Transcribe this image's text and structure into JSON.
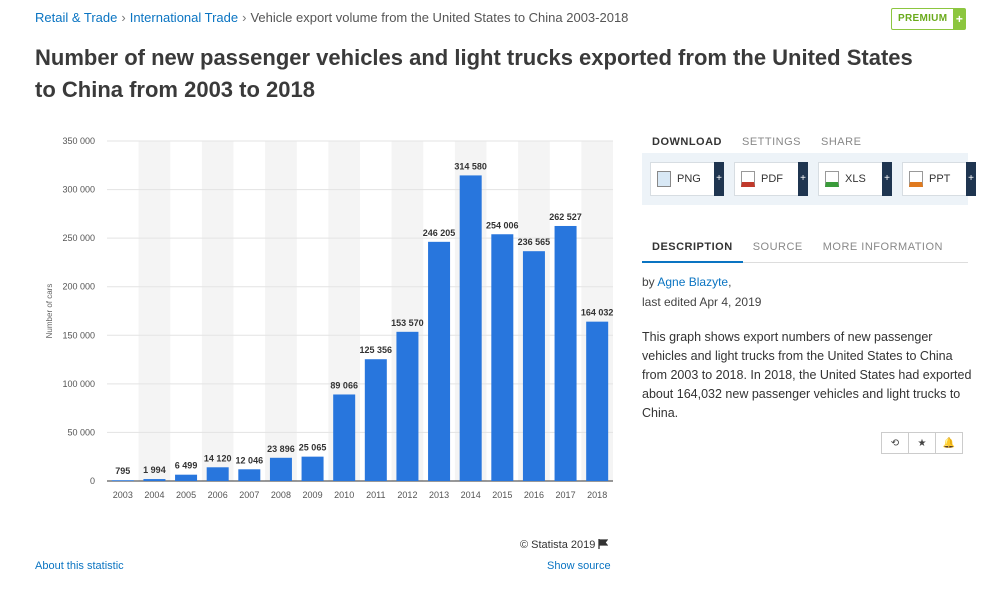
{
  "breadcrumb": {
    "items": [
      "Retail & Trade",
      "International Trade"
    ],
    "current": "Vehicle export volume from the United States to China 2003-2018",
    "separator": "›"
  },
  "premium": {
    "label": "PREMIUM",
    "plus": "+"
  },
  "title": "Number of new passenger vehicles and light trucks exported from the United States to China from 2003 to 2018",
  "chart_data": {
    "type": "bar",
    "title": "",
    "xlabel": "",
    "ylabel": "Number of cars",
    "ylim": [
      0,
      350000
    ],
    "yticks": [
      0,
      50000,
      100000,
      150000,
      200000,
      250000,
      300000,
      350000
    ],
    "ytick_labels": [
      "0",
      "50 000",
      "100 000",
      "150 000",
      "200 000",
      "250 000",
      "300 000",
      "350 000"
    ],
    "categories": [
      "2003",
      "2004",
      "2005",
      "2006",
      "2007",
      "2008",
      "2009",
      "2010",
      "2011",
      "2012",
      "2013",
      "2014",
      "2015",
      "2016",
      "2017",
      "2018"
    ],
    "values": [
      795,
      1994,
      6499,
      14120,
      12046,
      23896,
      25065,
      89066,
      125356,
      153570,
      246205,
      314580,
      254006,
      236565,
      262527,
      164032
    ],
    "value_labels": [
      "795",
      "1 994",
      "6 499",
      "14 120",
      "12 046",
      "23 896",
      "25 065",
      "89 066",
      "125 356",
      "153 570",
      "246 205",
      "314 580",
      "254 006",
      "236 565",
      "262 527",
      "164 032"
    ],
    "bar_color": "#2876dd",
    "grid": true,
    "legend": "none"
  },
  "credit": {
    "text": "© Statista 2019",
    "icon": "flag-icon"
  },
  "footer": {
    "about": "About this statistic",
    "source": "Show source"
  },
  "panel": {
    "tabs1": [
      "DOWNLOAD",
      "SETTINGS",
      "SHARE"
    ],
    "downloads": [
      {
        "label": "PNG",
        "icon": "png-file-icon",
        "color": "#4a7fb5"
      },
      {
        "label": "PDF",
        "icon": "pdf-file-icon",
        "color": "#c0392b"
      },
      {
        "label": "XLS",
        "icon": "xls-file-icon",
        "color": "#3a9b3a"
      },
      {
        "label": "PPT",
        "icon": "ppt-file-icon",
        "color": "#e07a1f"
      }
    ],
    "download_plus": "+",
    "tabs2": [
      "DESCRIPTION",
      "SOURCE",
      "MORE INFORMATION"
    ],
    "author_prefix": "by",
    "author": "Agne Blazyte",
    "author_suffix": ",",
    "edited": "last edited Apr 4, 2019",
    "description": "This graph shows export numbers of new passenger vehicles and light trucks from the United States to China from 2003 to 2018. In 2018, the United States had exported about 164,032 new passenger vehicles and light trucks to China.",
    "actions": [
      "history-icon",
      "star-icon",
      "bell-icon"
    ],
    "action_glyphs": [
      "⟲",
      "★",
      "🔔"
    ]
  }
}
